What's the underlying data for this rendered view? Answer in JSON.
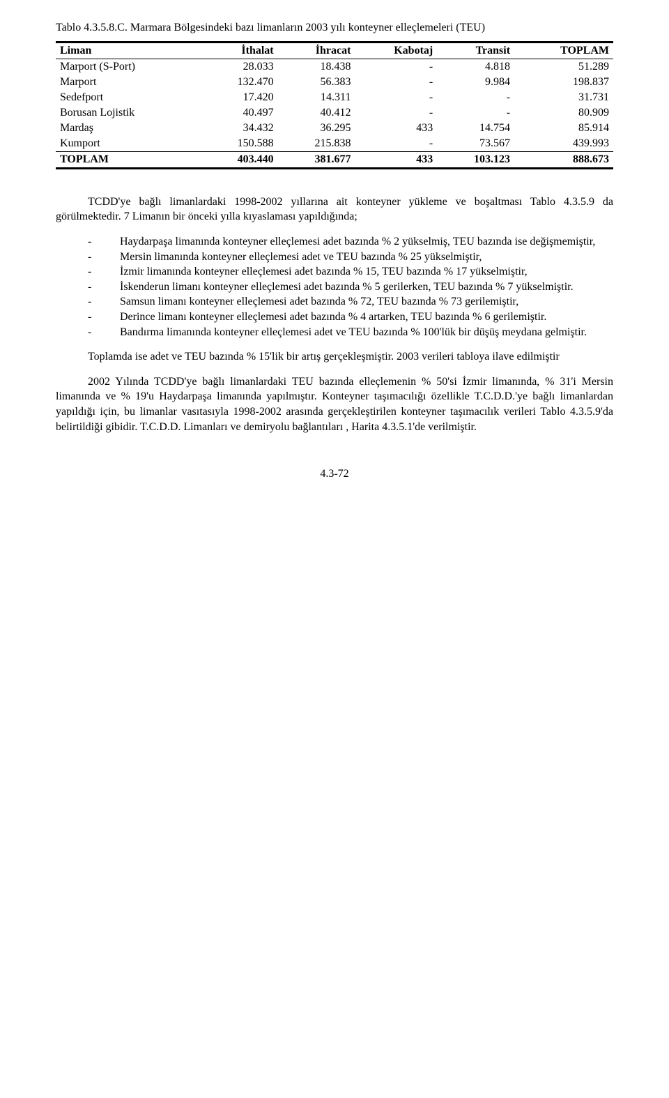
{
  "caption": {
    "prefix": "Tablo 4.3.5.8.C.",
    "text": "Marmara Bölgesindeki bazı limanların 2003 yılı konteyner elleçlemeleri (TEU)"
  },
  "table": {
    "columns": [
      "Liman",
      "İthalat",
      "İhracat",
      "Kabotaj",
      "Transit",
      "TOPLAM"
    ],
    "rows": [
      [
        "Marport (S-Port)",
        "28.033",
        "18.438",
        "-",
        "4.818",
        "51.289"
      ],
      [
        "Marport",
        "132.470",
        "56.383",
        "-",
        "9.984",
        "198.837"
      ],
      [
        "Sedefport",
        "17.420",
        "14.311",
        "-",
        "-",
        "31.731"
      ],
      [
        "Borusan Lojistik",
        "40.497",
        "40.412",
        "-",
        "-",
        "80.909"
      ],
      [
        "Mardaş",
        "34.432",
        "36.295",
        "433",
        "14.754",
        "85.914"
      ],
      [
        "Kumport",
        "150.588",
        "215.838",
        "-",
        "73.567",
        "439.993"
      ]
    ],
    "total": [
      "TOPLAM",
      "403.440",
      "381.677",
      "433",
      "103.123",
      "888.673"
    ]
  },
  "p1": "TCDD'ye bağlı limanlardaki 1998-2002 yıllarına ait konteyner yükleme ve boşaltması Tablo 4.3.5.9 da görülmektedir. 7 Limanın bir önceki yılla kıyaslaması yapıldığında;",
  "bullets": [
    "Haydarpaşa limanında konteyner elleçlemesi adet bazında % 2 yükselmiş, TEU bazında ise değişmemiştir,",
    "Mersin limanında konteyner elleçlemesi adet  ve TEU bazında  % 25 yükselmiştir,",
    "İzmir limanında konteyner elleçlemesi adet bazında % 15, TEU bazında % 17 yükselmiştir,",
    "İskenderun limanı konteyner elleçlemesi adet bazında % 5 gerilerken, TEU bazında % 7 yükselmiştir.",
    "Samsun limanı konteyner elleçlemesi adet bazında % 72, TEU bazında % 73 gerilemiştir,",
    "Derince limanı konteyner elleçlemesi adet bazında % 4 artarken, TEU bazında % 6 gerilemiştir.",
    "Bandırma limanında konteyner elleçlemesi adet ve TEU bazında % 100'lük bir düşüş meydana gelmiştir."
  ],
  "p2": "Toplamda ise adet ve TEU bazında % 15'lik bir artış gerçekleşmiştir. 2003 verileri tabloya ilave edilmiştir",
  "p3": "2002 Yılında TCDD'ye bağlı limanlardaki TEU bazında elleçlemenin % 50'si İzmir limanında, % 31'i Mersin limanında ve % 19'u Haydarpaşa limanında yapılmıştır. Konteyner taşımacılığı özellikle T.C.D.D.'ye bağlı limanlardan yapıldığı için, bu limanlar vasıtasıyla 1998-2002 arasında gerçekleştirilen konteyner taşımacılık verileri Tablo 4.3.5.9'da belirtildiği gibidir. T.C.D.D. Limanları ve demiryolu bağlantıları , Harita 4.3.5.1'de verilmiştir.",
  "footer": "4.3-72",
  "dash": "-"
}
